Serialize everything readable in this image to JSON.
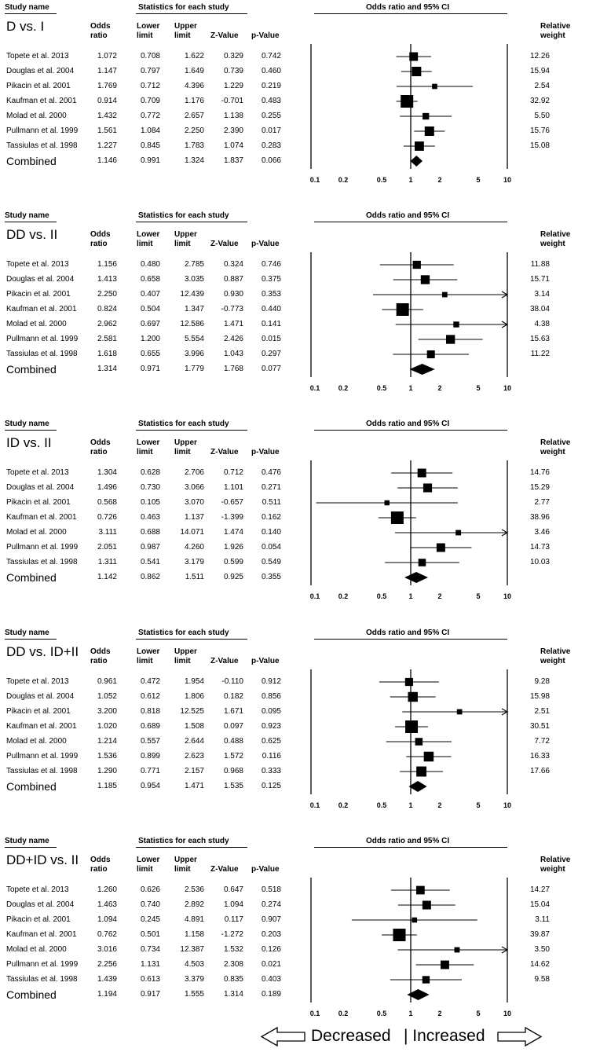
{
  "headers": {
    "study": "Study name",
    "stats": "Statistics for each study",
    "plot": "Odds ratio and 95% CI",
    "odds": [
      "Odds",
      "ratio"
    ],
    "lower": [
      "Lower",
      "limit"
    ],
    "upper": [
      "Upper",
      "limit"
    ],
    "z": "Z-Value",
    "p": "p-Value",
    "weight": [
      "Relative",
      "weight"
    ]
  },
  "footer": {
    "decreased": "Decreased",
    "increased": "| Increased"
  },
  "chart_data": [
    {
      "type": "forest",
      "title": "D vs. I",
      "xaxis": {
        "scale": "log",
        "range": [
          0.1,
          10
        ],
        "ticks": [
          "0.1",
          "0.2",
          "0.5",
          "1",
          "2",
          "5",
          "10"
        ]
      },
      "studies": [
        {
          "name": "Topete et al. 2013",
          "or": "1.072",
          "lower": "0.708",
          "upper": "1.622",
          "z": "0.329",
          "p": "0.742",
          "weight": "12.26"
        },
        {
          "name": "Douglas et al. 2004",
          "or": "1.147",
          "lower": "0.797",
          "upper": "1.649",
          "z": "0.739",
          "p": "0.460",
          "weight": "15.94"
        },
        {
          "name": "Pikacin et al. 2001",
          "or": "1.769",
          "lower": "0.712",
          "upper": "4.396",
          "z": "1.229",
          "p": "0.219",
          "weight": "2.54"
        },
        {
          "name": "Kaufman et al. 2001",
          "or": "0.914",
          "lower": "0.709",
          "upper": "1.176",
          "z": "-0.701",
          "p": "0.483",
          "weight": "32.92"
        },
        {
          "name": "Molad et al. 2000",
          "or": "1.432",
          "lower": "0.772",
          "upper": "2.657",
          "z": "1.138",
          "p": "0.255",
          "weight": "5.50"
        },
        {
          "name": "Pullmann et al. 1999",
          "or": "1.561",
          "lower": "1.084",
          "upper": "2.250",
          "z": "2.390",
          "p": "0.017",
          "weight": "15.76"
        },
        {
          "name": "Tassiulas et al. 1998",
          "or": "1.227",
          "lower": "0.845",
          "upper": "1.783",
          "z": "1.074",
          "p": "0.283",
          "weight": "15.08"
        }
      ],
      "combined": {
        "name": "Combined",
        "or": "1.146",
        "lower": "0.991",
        "upper": "1.324",
        "z": "1.837",
        "p": "0.066"
      }
    },
    {
      "type": "forest",
      "title": "DD vs. II",
      "xaxis": {
        "scale": "log",
        "range": [
          0.1,
          10
        ],
        "ticks": [
          "0.1",
          "0.2",
          "0.5",
          "1",
          "2",
          "5",
          "10"
        ]
      },
      "studies": [
        {
          "name": "Topete et al. 2013",
          "or": "1.156",
          "lower": "0.480",
          "upper": "2.785",
          "z": "0.324",
          "p": "0.746",
          "weight": "11.88"
        },
        {
          "name": "Douglas et al. 2004",
          "or": "1.413",
          "lower": "0.658",
          "upper": "3.035",
          "z": "0.887",
          "p": "0.375",
          "weight": "15.71"
        },
        {
          "name": "Pikacin et al. 2001",
          "or": "2.250",
          "lower": "0.407",
          "upper": "12.439",
          "z": "0.930",
          "p": "0.353",
          "weight": "3.14"
        },
        {
          "name": "Kaufman et al. 2001",
          "or": "0.824",
          "lower": "0.504",
          "upper": "1.347",
          "z": "-0.773",
          "p": "0.440",
          "weight": "38.04"
        },
        {
          "name": "Molad et al. 2000",
          "or": "2.962",
          "lower": "0.697",
          "upper": "12.586",
          "z": "1.471",
          "p": "0.141",
          "weight": "4.38"
        },
        {
          "name": "Pullmann et al. 1999",
          "or": "2.581",
          "lower": "1.200",
          "upper": "5.554",
          "z": "2.426",
          "p": "0.015",
          "weight": "15.63"
        },
        {
          "name": "Tassiulas et al. 1998",
          "or": "1.618",
          "lower": "0.655",
          "upper": "3.996",
          "z": "1.043",
          "p": "0.297",
          "weight": "11.22"
        }
      ],
      "combined": {
        "name": "Combined",
        "or": "1.314",
        "lower": "0.971",
        "upper": "1.779",
        "z": "1.768",
        "p": "0.077"
      }
    },
    {
      "type": "forest",
      "title": "ID vs. II",
      "xaxis": {
        "scale": "log",
        "range": [
          0.1,
          10
        ],
        "ticks": [
          "0.1",
          "0.2",
          "0.5",
          "1",
          "2",
          "5",
          "10"
        ]
      },
      "studies": [
        {
          "name": "Topete et al. 2013",
          "or": "1.304",
          "lower": "0.628",
          "upper": "2.706",
          "z": "0.712",
          "p": "0.476",
          "weight": "14.76"
        },
        {
          "name": "Douglas et al. 2004",
          "or": "1.496",
          "lower": "0.730",
          "upper": "3.066",
          "z": "1.101",
          "p": "0.271",
          "weight": "15.29"
        },
        {
          "name": "Pikacin et al. 2001",
          "or": "0.568",
          "lower": "0.105",
          "upper": "3.070",
          "z": "-0.657",
          "p": "0.511",
          "weight": "2.77"
        },
        {
          "name": "Kaufman et al. 2001",
          "or": "0.726",
          "lower": "0.463",
          "upper": "1.137",
          "z": "-1.399",
          "p": "0.162",
          "weight": "38.96"
        },
        {
          "name": "Molad et al. 2000",
          "or": "3.111",
          "lower": "0.688",
          "upper": "14.071",
          "z": "1.474",
          "p": "0.140",
          "weight": "3.46"
        },
        {
          "name": "Pullmann et al. 1999",
          "or": "2.051",
          "lower": "0.987",
          "upper": "4.260",
          "z": "1.926",
          "p": "0.054",
          "weight": "14.73"
        },
        {
          "name": "Tassiulas et al. 1998",
          "or": "1.311",
          "lower": "0.541",
          "upper": "3.179",
          "z": "0.599",
          "p": "0.549",
          "weight": "10.03"
        }
      ],
      "combined": {
        "name": "Combined",
        "or": "1.142",
        "lower": "0.862",
        "upper": "1.511",
        "z": "0.925",
        "p": "0.355"
      }
    },
    {
      "type": "forest",
      "title": "DD vs. ID+II",
      "xaxis": {
        "scale": "log",
        "range": [
          0.1,
          10
        ],
        "ticks": [
          "0.1",
          "0.2",
          "0.5",
          "1",
          "2",
          "5",
          "10"
        ]
      },
      "studies": [
        {
          "name": "Topete et al. 2013",
          "or": "0.961",
          "lower": "0.472",
          "upper": "1.954",
          "z": "-0.110",
          "p": "0.912",
          "weight": "9.28"
        },
        {
          "name": "Douglas et al. 2004",
          "or": "1.052",
          "lower": "0.612",
          "upper": "1.806",
          "z": "0.182",
          "p": "0.856",
          "weight": "15.98"
        },
        {
          "name": "Pikacin et al. 2001",
          "or": "3.200",
          "lower": "0.818",
          "upper": "12.525",
          "z": "1.671",
          "p": "0.095",
          "weight": "2.51"
        },
        {
          "name": "Kaufman et al. 2001",
          "or": "1.020",
          "lower": "0.689",
          "upper": "1.508",
          "z": "0.097",
          "p": "0.923",
          "weight": "30.51"
        },
        {
          "name": "Molad et al. 2000",
          "or": "1.214",
          "lower": "0.557",
          "upper": "2.644",
          "z": "0.488",
          "p": "0.625",
          "weight": "7.72"
        },
        {
          "name": "Pullmann et al. 1999",
          "or": "1.536",
          "lower": "0.899",
          "upper": "2.623",
          "z": "1.572",
          "p": "0.116",
          "weight": "16.33"
        },
        {
          "name": "Tassiulas et al. 1998",
          "or": "1.290",
          "lower": "0.771",
          "upper": "2.157",
          "z": "0.968",
          "p": "0.333",
          "weight": "17.66"
        }
      ],
      "combined": {
        "name": "Combined",
        "or": "1.185",
        "lower": "0.954",
        "upper": "1.471",
        "z": "1.535",
        "p": "0.125"
      }
    },
    {
      "type": "forest",
      "title": "DD+ID vs. II",
      "xaxis": {
        "scale": "log",
        "range": [
          0.1,
          10
        ],
        "ticks": [
          "0.1",
          "0.2",
          "0.5",
          "1",
          "2",
          "5",
          "10"
        ]
      },
      "studies": [
        {
          "name": "Topete et al. 2013",
          "or": "1.260",
          "lower": "0.626",
          "upper": "2.536",
          "z": "0.647",
          "p": "0.518",
          "weight": "14.27"
        },
        {
          "name": "Douglas et al. 2004",
          "or": "1.463",
          "lower": "0.740",
          "upper": "2.892",
          "z": "1.094",
          "p": "0.274",
          "weight": "15.04"
        },
        {
          "name": "Pikacin et al. 2001",
          "or": "1.094",
          "lower": "0.245",
          "upper": "4.891",
          "z": "0.117",
          "p": "0.907",
          "weight": "3.11"
        },
        {
          "name": "Kaufman et al. 2001",
          "or": "0.762",
          "lower": "0.501",
          "upper": "1.158",
          "z": "-1.272",
          "p": "0.203",
          "weight": "39.87"
        },
        {
          "name": "Molad et al. 2000",
          "or": "3.016",
          "lower": "0.734",
          "upper": "12.387",
          "z": "1.532",
          "p": "0.126",
          "weight": "3.50"
        },
        {
          "name": "Pullmann et al. 1999",
          "or": "2.256",
          "lower": "1.131",
          "upper": "4.503",
          "z": "2.308",
          "p": "0.021",
          "weight": "14.62"
        },
        {
          "name": "Tassiulas et al. 1998",
          "or": "1.439",
          "lower": "0.613",
          "upper": "3.379",
          "z": "0.835",
          "p": "0.403",
          "weight": "9.58"
        }
      ],
      "combined": {
        "name": "Combined",
        "or": "1.194",
        "lower": "0.917",
        "upper": "1.555",
        "z": "1.314",
        "p": "0.189"
      }
    }
  ]
}
